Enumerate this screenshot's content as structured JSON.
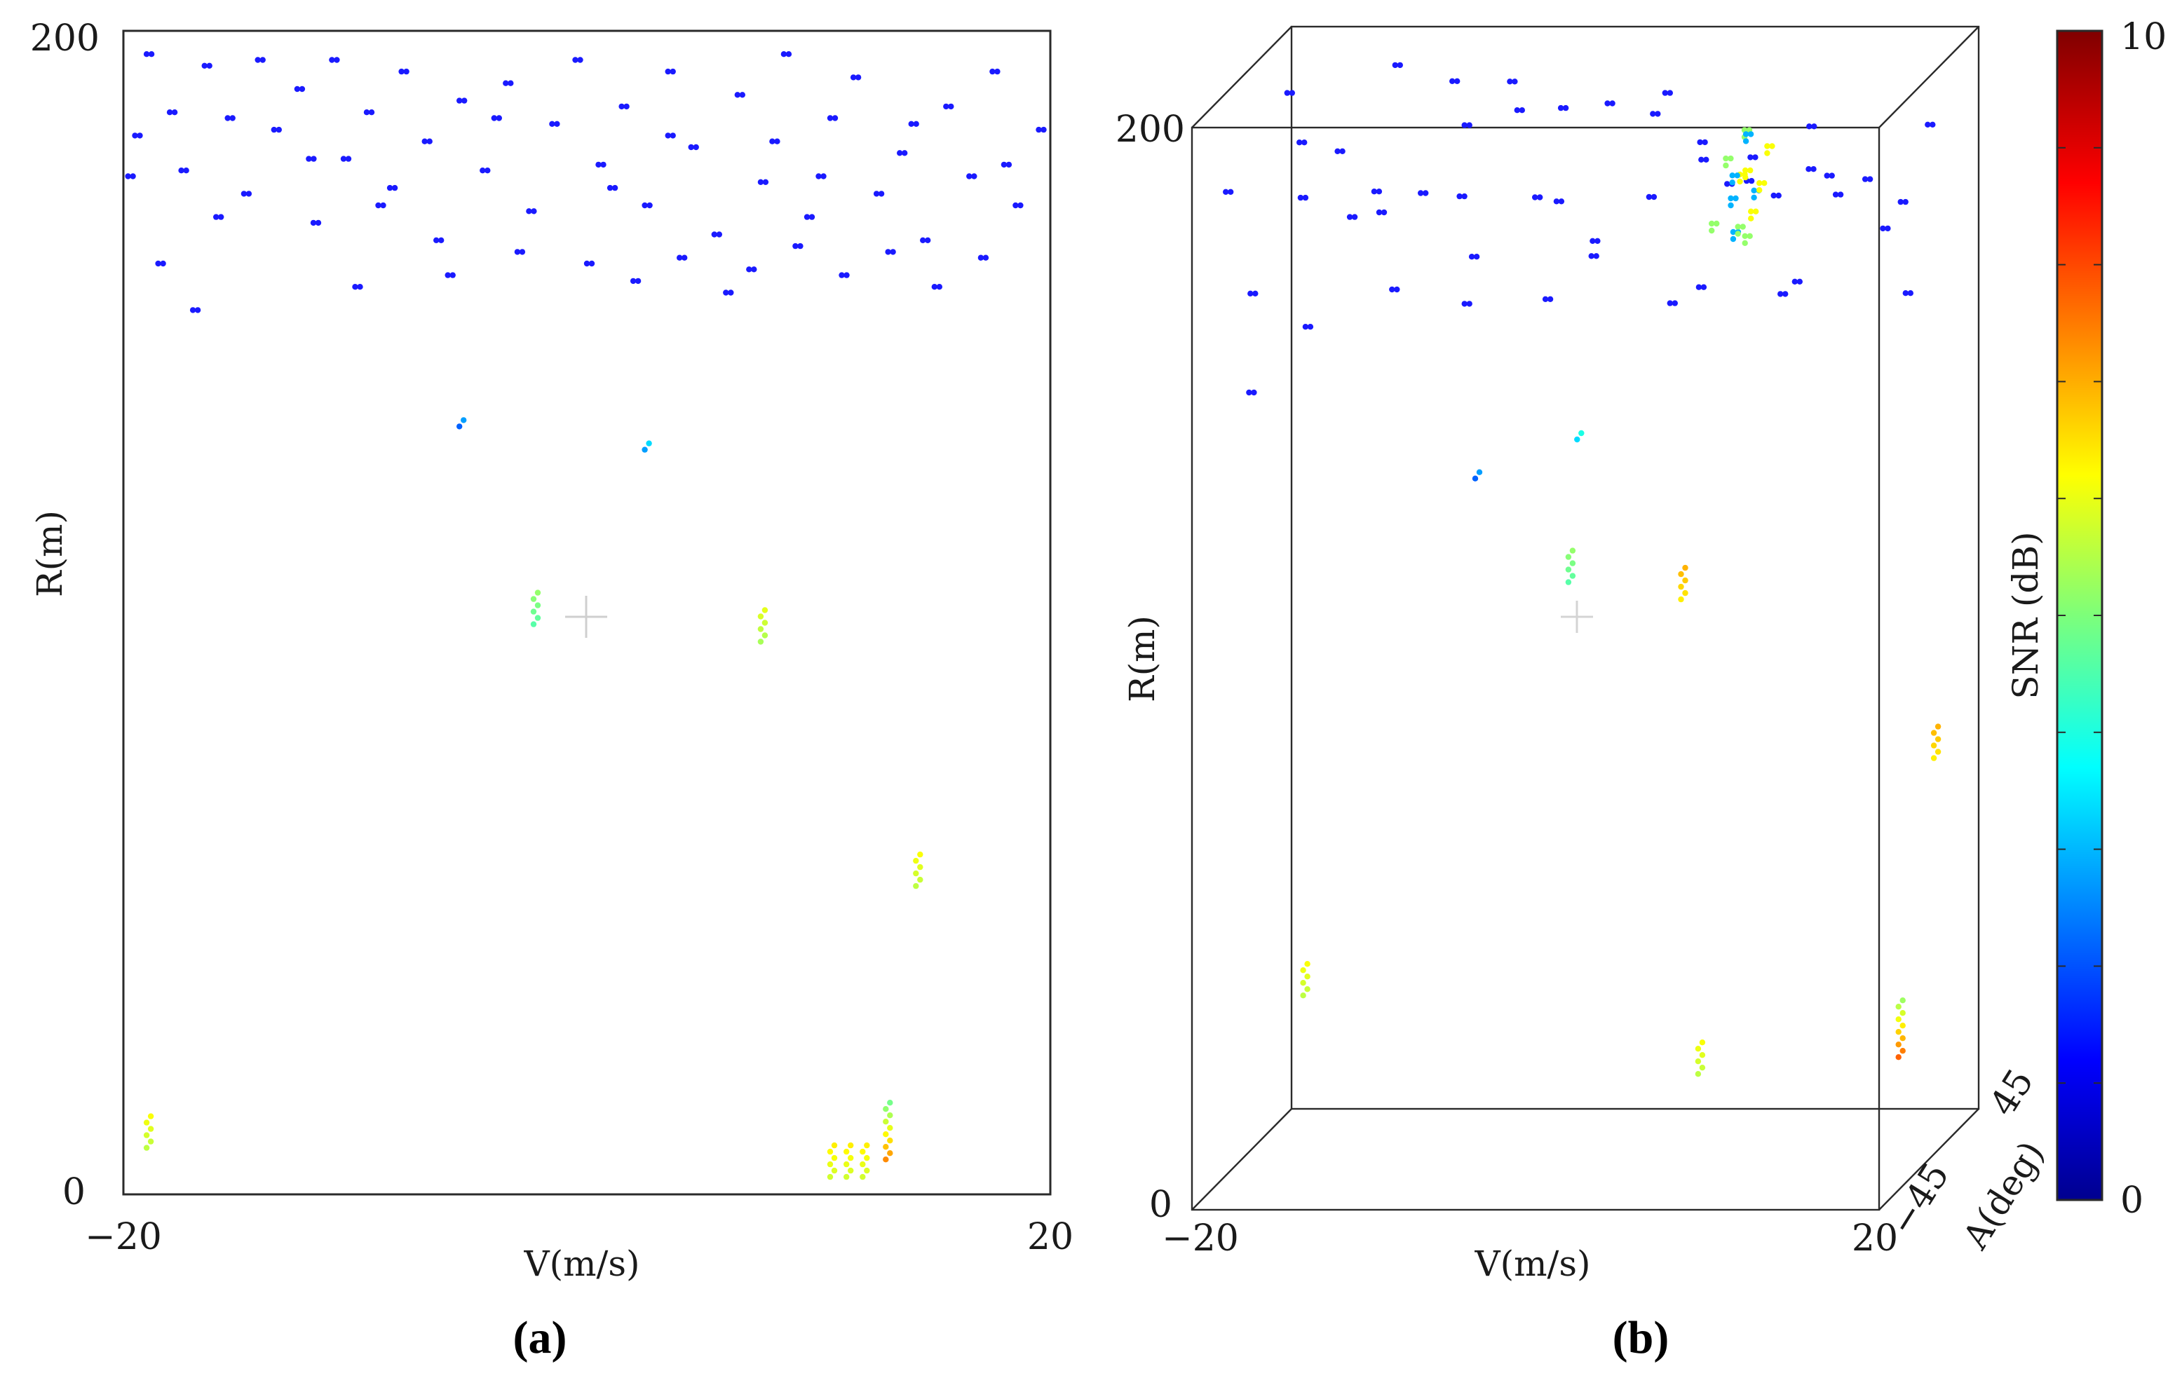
{
  "colors": {
    "frame": "#2a2a2a",
    "text": "#1a1a1a"
  },
  "chart_data": [
    {
      "panel": "a",
      "type": "scatter",
      "caption": "(a)",
      "xlabel": "V(m/s)",
      "ylabel": "R(m)",
      "xlim": [
        -20,
        20
      ],
      "ylim": [
        0,
        200
      ],
      "xticks": [
        "−20",
        "20"
      ],
      "yticks": [
        "0",
        "200"
      ],
      "color_encoding": "SNR (dB)",
      "clutter": [
        [
          -19.5,
          182
        ],
        [
          -19,
          196
        ],
        [
          -18,
          186
        ],
        [
          -17.5,
          176
        ],
        [
          -16.5,
          194
        ],
        [
          -15.5,
          185
        ],
        [
          -14.8,
          172
        ],
        [
          -14.2,
          195
        ],
        [
          -13.5,
          183
        ],
        [
          -12.5,
          190
        ],
        [
          -11.8,
          167
        ],
        [
          -11,
          195
        ],
        [
          -10.5,
          178
        ],
        [
          -9.5,
          186
        ],
        [
          -8.5,
          173
        ],
        [
          -8,
          193
        ],
        [
          -7,
          181
        ],
        [
          -6.5,
          164
        ],
        [
          -5.5,
          188
        ],
        [
          -4.5,
          176
        ],
        [
          -3.5,
          191
        ],
        [
          -2.5,
          169
        ],
        [
          -1.5,
          184
        ],
        [
          -0.5,
          195
        ],
        [
          0.5,
          177
        ],
        [
          1.5,
          187
        ],
        [
          2.5,
          170
        ],
        [
          3.5,
          193
        ],
        [
          4.5,
          180
        ],
        [
          5.5,
          165
        ],
        [
          6.5,
          189
        ],
        [
          7.5,
          174
        ],
        [
          8,
          181
        ],
        [
          8.5,
          196
        ],
        [
          9.5,
          168
        ],
        [
          10.5,
          185
        ],
        [
          11.5,
          192
        ],
        [
          12.5,
          172
        ],
        [
          13.5,
          179
        ],
        [
          14.5,
          164
        ],
        [
          15.5,
          187
        ],
        [
          16.5,
          175
        ],
        [
          17.5,
          193
        ],
        [
          18.5,
          170
        ],
        [
          19.5,
          183
        ],
        [
          -18.5,
          160
        ],
        [
          -17,
          152
        ],
        [
          -10,
          156
        ],
        [
          -6,
          158
        ],
        [
          -3,
          162
        ],
        [
          0,
          160
        ],
        [
          2,
          157
        ],
        [
          4,
          161
        ],
        [
          6,
          155
        ],
        [
          7,
          159
        ],
        [
          9,
          163
        ],
        [
          11,
          158
        ],
        [
          13,
          162
        ],
        [
          15,
          156
        ],
        [
          17,
          161
        ],
        [
          -19.8,
          175
        ],
        [
          -16,
          168
        ],
        [
          -12,
          178
        ],
        [
          -9,
          170
        ],
        [
          -4,
          185
        ],
        [
          1,
          173
        ],
        [
          3.5,
          182
        ],
        [
          10,
          175
        ],
        [
          14,
          184
        ],
        [
          18,
          177
        ]
      ],
      "targets": [
        {
          "v": -5.5,
          "r": 132,
          "snr": 2.2
        },
        {
          "v": 2.5,
          "r": 128,
          "snr": 2.8
        },
        {
          "v": -2.3,
          "r": 98,
          "snr": 4.6
        },
        {
          "v": 7.5,
          "r": 95,
          "snr": 5.4
        },
        {
          "v": 14.2,
          "r": 53,
          "snr": 5.6
        },
        {
          "v": 12.9,
          "r": 6,
          "snr": 7.4
        },
        {
          "v": 10.5,
          "r": 3,
          "snr": 5.8
        },
        {
          "v": 11.2,
          "r": 3,
          "snr": 5.8
        },
        {
          "v": 11.9,
          "r": 3,
          "snr": 5.8
        },
        {
          "v": -19,
          "r": 8,
          "snr": 5.6
        }
      ]
    },
    {
      "panel": "b",
      "type": "scatter3d",
      "caption": "(b)",
      "xlabel": "V(m/s)",
      "ylabel": "R(m)",
      "zlabel": "A(deg)",
      "xlim": [
        -20,
        20
      ],
      "ylim": [
        0,
        200
      ],
      "zlim": [
        -45,
        45
      ],
      "xticks": [
        "−20",
        "20"
      ],
      "yticks": [
        "0",
        "200"
      ],
      "zticks": [
        "−45",
        "45"
      ],
      "clutter": [
        [
          -19,
          185,
          -30
        ],
        [
          -18,
          195,
          10
        ],
        [
          -17,
          178,
          40
        ],
        [
          -16,
          190,
          -10
        ],
        [
          -15,
          170,
          20
        ],
        [
          -14,
          186,
          -40
        ],
        [
          -13,
          196,
          30
        ],
        [
          -12,
          175,
          0
        ],
        [
          -11,
          183,
          -20
        ],
        [
          -10,
          192,
          35
        ],
        [
          -9,
          168,
          -35
        ],
        [
          -8,
          188,
          15
        ],
        [
          -7,
          179,
          -5
        ],
        [
          -6,
          194,
          25
        ],
        [
          -5,
          172,
          -25
        ],
        [
          -4,
          186,
          40
        ],
        [
          -3,
          197,
          -15
        ],
        [
          -2,
          176,
          5
        ],
        [
          -1,
          184,
          -30
        ],
        [
          0,
          191,
          20
        ],
        [
          1,
          169,
          -10
        ],
        [
          2,
          187,
          30
        ],
        [
          3,
          178,
          -40
        ],
        [
          4,
          195,
          10
        ],
        [
          5,
          182,
          -20
        ],
        [
          6,
          173,
          35
        ],
        [
          7,
          189,
          -5
        ],
        [
          8,
          180,
          25
        ],
        [
          9,
          192,
          -35
        ],
        [
          10,
          175,
          15
        ],
        [
          11,
          186,
          -25
        ],
        [
          12,
          170,
          40
        ],
        [
          13,
          183,
          0
        ],
        [
          14,
          194,
          -15
        ],
        [
          15,
          177,
          20
        ],
        [
          16,
          188,
          -30
        ],
        [
          17,
          171,
          5
        ],
        [
          18,
          185,
          30
        ],
        [
          19,
          179,
          -10
        ],
        [
          -19.5,
          160,
          0
        ],
        [
          -15,
          158,
          -20
        ],
        [
          -8,
          155,
          15
        ],
        [
          -2,
          160,
          -5
        ],
        [
          5,
          156,
          25
        ],
        [
          12,
          162,
          -10
        ],
        [
          18,
          158,
          10
        ],
        [
          -17,
          150,
          -40
        ],
        [
          3,
          152,
          30
        ],
        [
          -11,
          174,
          22
        ],
        [
          14,
          168,
          -28
        ]
      ],
      "dense_cluster": [
        [
          8.5,
          186,
          -5
        ],
        [
          9,
          182,
          0
        ],
        [
          9.5,
          178,
          5
        ],
        [
          8,
          175,
          -10
        ],
        [
          10,
          180,
          2
        ],
        [
          8.8,
          172,
          -3
        ],
        [
          9.2,
          190,
          1
        ],
        [
          9.7,
          184,
          -6
        ],
        [
          8.3,
          181,
          4
        ],
        [
          9.4,
          174,
          -8
        ],
        [
          10.2,
          186,
          6
        ],
        [
          8.6,
          178,
          -2
        ],
        [
          9.1,
          170,
          3
        ],
        [
          9.9,
          176,
          -4
        ],
        [
          8.9,
          188,
          7
        ]
      ],
      "targets": [
        {
          "v": -4.8,
          "r": 131,
          "a": -25,
          "snr": 2.2
        },
        {
          "v": -0.8,
          "r": 132,
          "a": 5,
          "snr": 3.4
        },
        {
          "v": -1.5,
          "r": 105,
          "a": 8,
          "snr": 4.6
        },
        {
          "v": 4.8,
          "r": 101,
          "a": 12,
          "snr": 6.4
        },
        {
          "v": 19.0,
          "r": 70,
          "a": 20,
          "snr": 6.4
        },
        {
          "v": 19.2,
          "r": 22,
          "a": -15,
          "snr": 7.8
        },
        {
          "v": 8.5,
          "r": 22,
          "a": -30,
          "snr": 5.6
        },
        {
          "v": -19,
          "r": 22,
          "a": 40,
          "snr": 5.6
        }
      ],
      "colorbar": {
        "label": "SNR (dB)",
        "min": 0,
        "max": 10,
        "ticks": [
          "0",
          "10"
        ]
      }
    }
  ]
}
